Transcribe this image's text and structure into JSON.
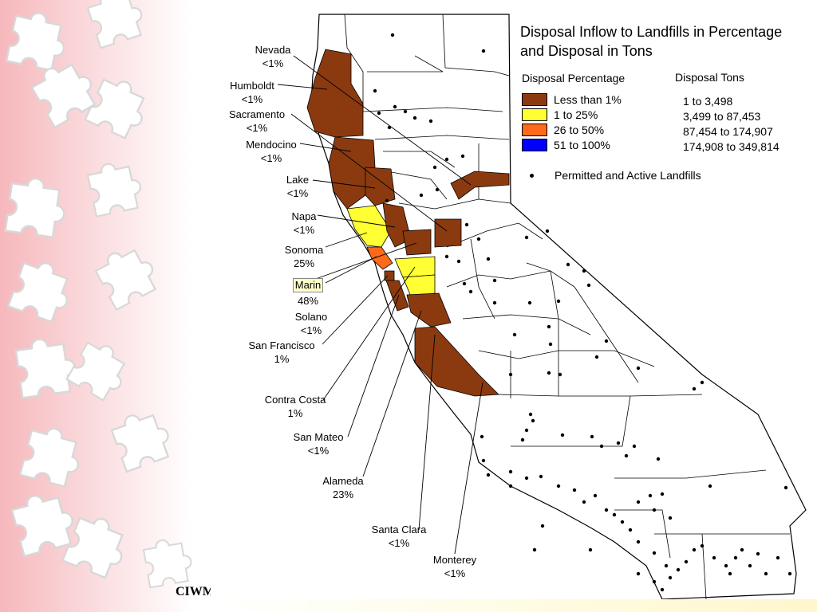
{
  "map": {
    "title": "Disposal Inflow to Landfills in Percentage and Disposal in Tons"
  },
  "legend": {
    "percentage_heading": "Disposal Percentage",
    "tons_heading": "Disposal Tons",
    "percentage_items": [
      {
        "label": "Less than 1%",
        "color": "#8b3a0f"
      },
      {
        "label": "1 to 25%",
        "color": "#ffff33"
      },
      {
        "label": "26 to 50%",
        "color": "#ff6a1a"
      },
      {
        "label": "51 to 100%",
        "color": "#0000ff"
      }
    ],
    "tons_items": [
      "1 to 3,498",
      "3,499 to 87,453",
      "87,454 to 174,907",
      "174,908 to 349,814"
    ],
    "landfill_label": "Permitted and Active Landfills"
  },
  "counties": [
    {
      "name": "Nevada",
      "value": "<1%"
    },
    {
      "name": "Humboldt",
      "value": "<1%"
    },
    {
      "name": "Sacramento",
      "value": "<1%"
    },
    {
      "name": "Mendocino",
      "value": "<1%"
    },
    {
      "name": "Lake",
      "value": "<1%"
    },
    {
      "name": "Napa",
      "value": "<1%"
    },
    {
      "name": "Sonoma",
      "value": "25%"
    },
    {
      "name": "Marin",
      "value": "48%"
    },
    {
      "name": "Solano",
      "value": "<1%"
    },
    {
      "name": "San Francisco",
      "value": "1%"
    },
    {
      "name": "Contra Costa",
      "value": "1%"
    },
    {
      "name": "San Mateo",
      "value": "<1%"
    },
    {
      "name": "Alameda",
      "value": "23%"
    },
    {
      "name": "Santa Clara",
      "value": "<1%"
    },
    {
      "name": "Monterey",
      "value": "<1%"
    }
  ],
  "footer": {
    "text": "CIWMB"
  }
}
